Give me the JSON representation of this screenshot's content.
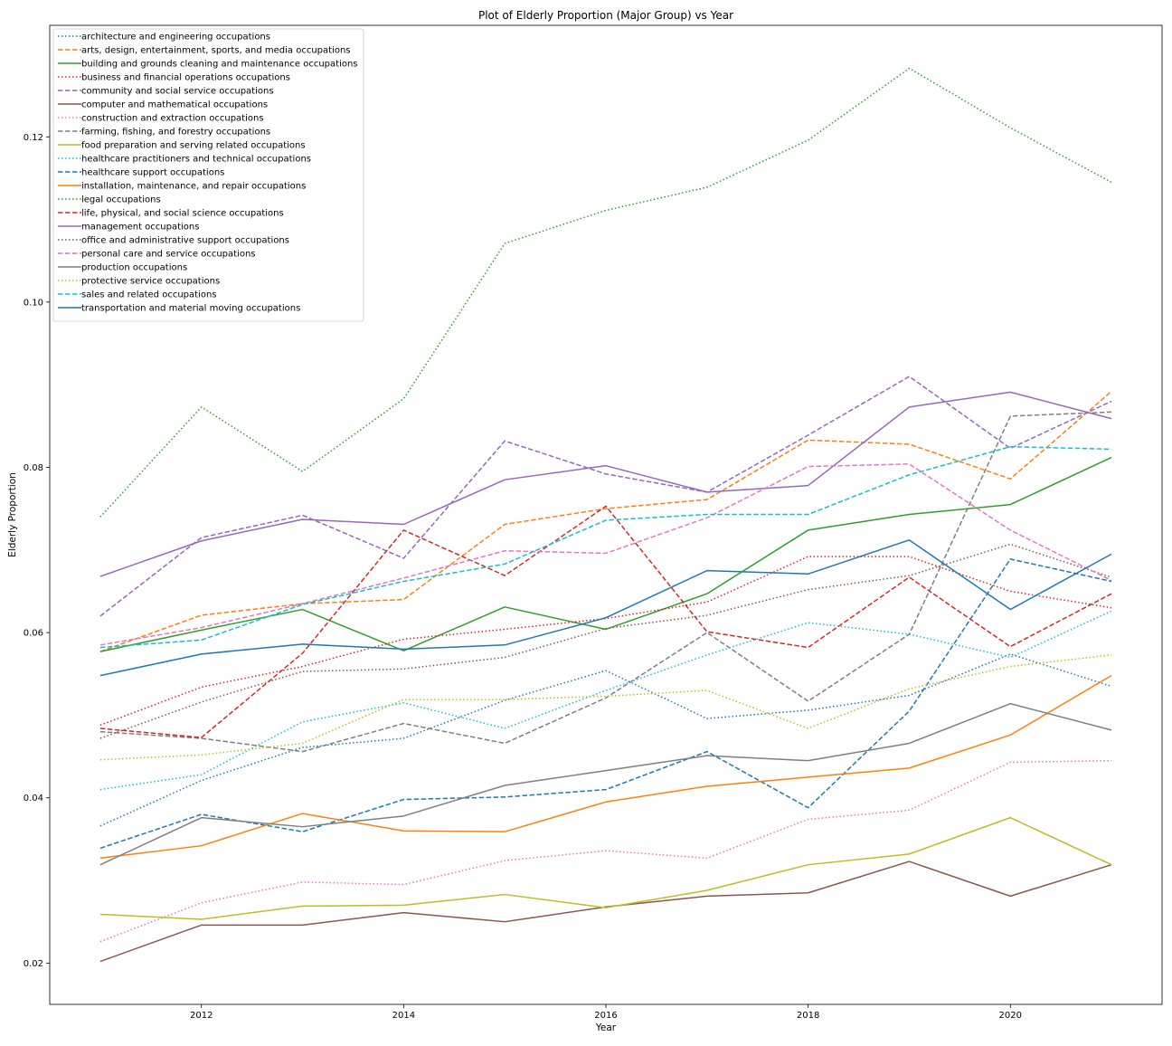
{
  "chart_data": {
    "type": "line",
    "title": "Plot of Elderly Proportion (Major Group) vs Year",
    "xlabel": "Year",
    "ylabel": "Elderly Proportion",
    "xlim": [
      2010.5,
      2021.5
    ],
    "ylim": [
      0.015,
      0.1335
    ],
    "xticks": [
      2012,
      2014,
      2016,
      2018,
      2020
    ],
    "yticks": [
      0.02,
      0.04,
      0.06,
      0.08,
      0.1,
      0.12
    ],
    "ytick_labels": [
      "0.02",
      "0.04",
      "0.06",
      "0.08",
      "0.10",
      "0.12"
    ],
    "grid": false,
    "legend_position": "top-left",
    "x": [
      2011,
      2012,
      2013,
      2014,
      2015,
      2016,
      2017,
      2018,
      2019,
      2020,
      2021
    ],
    "series": [
      {
        "name": "architecture and engineering occupations",
        "color": "#1f77b4",
        "style": "dotted",
        "values": [
          0.0366,
          0.0421,
          0.0461,
          0.0472,
          0.0518,
          0.0554,
          0.0496,
          0.0506,
          0.0524,
          0.0574,
          0.0535
        ]
      },
      {
        "name": "arts, design, entertainment, sports, and media occupations",
        "color": "#ff7f0e",
        "style": "dashed",
        "values": [
          0.0577,
          0.0621,
          0.0635,
          0.064,
          0.0731,
          0.075,
          0.0761,
          0.0833,
          0.0828,
          0.0786,
          0.0892
        ]
      },
      {
        "name": "building and grounds cleaning and maintenance occupations",
        "color": "#2ca02c",
        "style": "solid",
        "values": [
          0.0577,
          0.0603,
          0.0628,
          0.0578,
          0.0631,
          0.0604,
          0.0647,
          0.0724,
          0.0743,
          0.0755,
          0.0812
        ]
      },
      {
        "name": "business and financial operations occupations",
        "color": "#d62728",
        "style": "dotted",
        "values": [
          0.0488,
          0.0534,
          0.0559,
          0.0592,
          0.0604,
          0.0617,
          0.0637,
          0.0692,
          0.0692,
          0.065,
          0.063
        ]
      },
      {
        "name": "community and social service occupations",
        "color": "#9467bd",
        "style": "dashed",
        "values": [
          0.062,
          0.0715,
          0.0742,
          0.069,
          0.0832,
          0.0792,
          0.077,
          0.0839,
          0.091,
          0.0823,
          0.088
        ]
      },
      {
        "name": "computer and mathematical occupations",
        "color": "#8c564b",
        "style": "solid",
        "values": [
          0.0202,
          0.0246,
          0.0246,
          0.0261,
          0.025,
          0.0268,
          0.0281,
          0.0285,
          0.0323,
          0.0281,
          0.0319
        ]
      },
      {
        "name": "construction and extraction occupations",
        "color": "#e377c2",
        "style": "dotted",
        "values": [
          0.0226,
          0.0273,
          0.0298,
          0.0295,
          0.0324,
          0.0336,
          0.0327,
          0.0374,
          0.0385,
          0.0443,
          0.0445
        ]
      },
      {
        "name": "farming, fishing, and forestry occupations",
        "color": "#7f7f7f",
        "style": "dashed",
        "values": [
          0.048,
          0.0472,
          0.0456,
          0.049,
          0.0466,
          0.0521,
          0.06,
          0.0517,
          0.0598,
          0.0862,
          0.0867
        ]
      },
      {
        "name": "food preparation and serving related occupations",
        "color": "#bcbd22",
        "style": "solid",
        "values": [
          0.0259,
          0.0253,
          0.0269,
          0.027,
          0.0283,
          0.0267,
          0.0288,
          0.0319,
          0.0332,
          0.0376,
          0.0319
        ]
      },
      {
        "name": "healthcare practitioners and technical occupations",
        "color": "#17becf",
        "style": "dotted",
        "values": [
          0.041,
          0.0428,
          0.0492,
          0.0515,
          0.0484,
          0.053,
          0.0573,
          0.0612,
          0.0598,
          0.057,
          0.0626
        ]
      },
      {
        "name": "healthcare support occupations",
        "color": "#1f77b4",
        "style": "dashed",
        "values": [
          0.0339,
          0.038,
          0.0359,
          0.0398,
          0.0401,
          0.041,
          0.0456,
          0.0388,
          0.0505,
          0.0689,
          0.0662
        ]
      },
      {
        "name": "installation, maintenance, and repair occupations",
        "color": "#ff7f0e",
        "style": "solid",
        "values": [
          0.0327,
          0.0342,
          0.0381,
          0.036,
          0.0359,
          0.0395,
          0.0414,
          0.0425,
          0.0436,
          0.0476,
          0.0548
        ]
      },
      {
        "name": "legal occupations",
        "color": "#2ca02c",
        "style": "dotted",
        "values": [
          0.074,
          0.0873,
          0.0795,
          0.0883,
          0.1071,
          0.1111,
          0.1139,
          0.1196,
          0.1283,
          0.1211,
          0.1145
        ]
      },
      {
        "name": "life, physical, and social science occupations",
        "color": "#d62728",
        "style": "dashed",
        "values": [
          0.0484,
          0.0473,
          0.0575,
          0.0724,
          0.0669,
          0.0753,
          0.0601,
          0.0582,
          0.0667,
          0.0583,
          0.0647
        ]
      },
      {
        "name": "management occupations",
        "color": "#9467bd",
        "style": "solid",
        "values": [
          0.0668,
          0.0711,
          0.0737,
          0.0731,
          0.0785,
          0.0802,
          0.077,
          0.0778,
          0.0873,
          0.0891,
          0.0859
        ]
      },
      {
        "name": "office and administrative support occupations",
        "color": "#8c564b",
        "style": "dotted",
        "values": [
          0.0472,
          0.0516,
          0.0553,
          0.0556,
          0.057,
          0.0605,
          0.0621,
          0.0652,
          0.0669,
          0.0707,
          0.0667
        ]
      },
      {
        "name": "personal care and service occupations",
        "color": "#e377c2",
        "style": "dashed",
        "values": [
          0.0585,
          0.0606,
          0.0635,
          0.0666,
          0.0699,
          0.0696,
          0.0739,
          0.0801,
          0.0804,
          0.0724,
          0.0663
        ]
      },
      {
        "name": "production occupations",
        "color": "#7f7f7f",
        "style": "solid",
        "values": [
          0.0319,
          0.0376,
          0.0365,
          0.0378,
          0.0415,
          0.0433,
          0.0451,
          0.0445,
          0.0466,
          0.0514,
          0.0482
        ]
      },
      {
        "name": "protective service occupations",
        "color": "#bcbd22",
        "style": "dotted",
        "values": [
          0.0446,
          0.0452,
          0.0466,
          0.0519,
          0.0519,
          0.0523,
          0.053,
          0.0484,
          0.0532,
          0.0559,
          0.0573
        ]
      },
      {
        "name": "sales and related occupations",
        "color": "#17becf",
        "style": "dashed",
        "values": [
          0.0582,
          0.0591,
          0.0634,
          0.0662,
          0.0683,
          0.0736,
          0.0743,
          0.0743,
          0.0791,
          0.0825,
          0.0822
        ]
      },
      {
        "name": "transportation and material moving occupations",
        "color": "#1f77b4",
        "style": "solid",
        "values": [
          0.0548,
          0.0574,
          0.0586,
          0.058,
          0.0585,
          0.0618,
          0.0675,
          0.0671,
          0.0712,
          0.0628,
          0.0695
        ]
      }
    ]
  }
}
